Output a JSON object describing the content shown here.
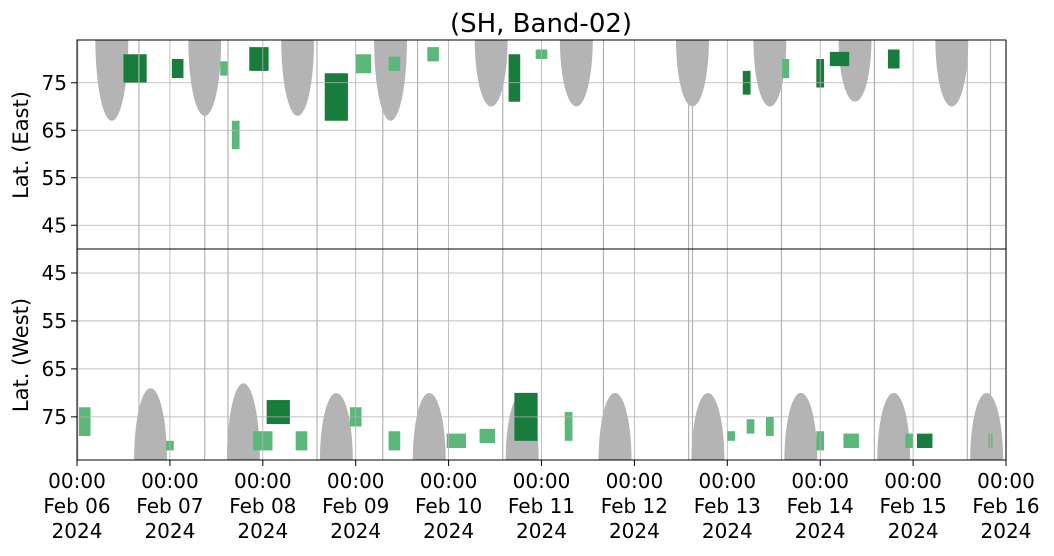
{
  "chart_data": {
    "type": "heatmap",
    "title": "(SH, Band-02)",
    "panels": [
      {
        "name": "east",
        "ylabel": "Lat. (East)",
        "yticks": [
          "45",
          "55",
          "65",
          "75"
        ],
        "ylim": [
          40,
          84
        ],
        "orientation": "up"
      },
      {
        "name": "west",
        "ylabel": "Lat. (West)",
        "yticks": [
          "75",
          "65",
          "55",
          "45"
        ],
        "ylim": [
          40,
          84
        ],
        "orientation": "down"
      }
    ],
    "xlim": [
      "2024-02-06 00:00",
      "2024-02-16 00:00"
    ],
    "x_ticks": [
      {
        "time": "00:00",
        "date": "Feb 06",
        "year": "2024"
      },
      {
        "time": "00:00",
        "date": "Feb 07",
        "year": "2024"
      },
      {
        "time": "00:00",
        "date": "Feb 08",
        "year": "2024"
      },
      {
        "time": "00:00",
        "date": "Feb 09",
        "year": "2024"
      },
      {
        "time": "00:00",
        "date": "Feb 10",
        "year": "2024"
      },
      {
        "time": "00:00",
        "date": "Feb 11",
        "year": "2024"
      },
      {
        "time": "00:00",
        "date": "Feb 12",
        "year": "2024"
      },
      {
        "time": "00:00",
        "date": "Feb 13",
        "year": "2024"
      },
      {
        "time": "00:00",
        "date": "Feb 14",
        "year": "2024"
      },
      {
        "time": "00:00",
        "date": "Feb 15",
        "year": "2024"
      },
      {
        "time": "00:00",
        "date": "Feb 16",
        "year": "2024"
      }
    ],
    "grid": true,
    "colors": {
      "no_data": "#b4b4b4",
      "echo_light": "#5cb87a",
      "echo_dark": "#187d3c"
    },
    "no_data_regions": [
      {
        "panel": "east",
        "center": "2024-02-06 09:00",
        "width_hours": 8.5,
        "min_lat": 67
      },
      {
        "panel": "east",
        "center": "2024-02-07 09:00",
        "width_hours": 8.5,
        "min_lat": 68
      },
      {
        "panel": "east",
        "center": "2024-02-08 09:00",
        "width_hours": 8.5,
        "min_lat": 68
      },
      {
        "panel": "east",
        "center": "2024-02-09 09:00",
        "width_hours": 8.5,
        "min_lat": 67
      },
      {
        "panel": "east",
        "center": "2024-02-10 11:00",
        "width_hours": 8.5,
        "min_lat": 70
      },
      {
        "panel": "east",
        "center": "2024-02-11 09:00",
        "width_hours": 8.5,
        "min_lat": 70
      },
      {
        "panel": "east",
        "center": "2024-02-12 15:00",
        "width_hours": 8.5,
        "min_lat": 70
      },
      {
        "panel": "east",
        "center": "2024-02-13 11:00",
        "width_hours": 8.5,
        "min_lat": 70
      },
      {
        "panel": "east",
        "center": "2024-02-14 09:00",
        "width_hours": 8.5,
        "min_lat": 71
      },
      {
        "panel": "east",
        "center": "2024-02-15 10:00",
        "width_hours": 8.5,
        "min_lat": 70
      },
      {
        "panel": "west",
        "center": "2024-02-06 19:00",
        "width_hours": 8.5,
        "min_lat": 69
      },
      {
        "panel": "west",
        "center": "2024-02-07 19:00",
        "width_hours": 8.5,
        "min_lat": 68
      },
      {
        "panel": "west",
        "center": "2024-02-08 19:00",
        "width_hours": 8.5,
        "min_lat": 70
      },
      {
        "panel": "west",
        "center": "2024-02-09 19:00",
        "width_hours": 8.5,
        "min_lat": 70
      },
      {
        "panel": "west",
        "center": "2024-02-10 19:00",
        "width_hours": 8.5,
        "min_lat": 70
      },
      {
        "panel": "west",
        "center": "2024-02-11 19:00",
        "width_hours": 8.5,
        "min_lat": 70
      },
      {
        "panel": "west",
        "center": "2024-02-12 19:00",
        "width_hours": 8.5,
        "min_lat": 70
      },
      {
        "panel": "west",
        "center": "2024-02-13 19:00",
        "width_hours": 8.5,
        "min_lat": 70
      },
      {
        "panel": "west",
        "center": "2024-02-14 19:00",
        "width_hours": 8.5,
        "min_lat": 70
      },
      {
        "panel": "west",
        "center": "2024-02-15 19:00",
        "width_hours": 8.5,
        "min_lat": 70
      }
    ],
    "no_data_lines": [
      "2024-02-06 00:10",
      "2024-02-06 16:00",
      "2024-02-07 09:00",
      "2024-02-07 15:00",
      "2024-02-08 14:00",
      "2024-02-09 07:00",
      "2024-02-09 16:00",
      "2024-02-10 14:00",
      "2024-02-11 16:00",
      "2024-02-12 14:00",
      "2024-02-12 15:00",
      "2024-02-13 14:00",
      "2024-02-14 14:00",
      "2024-02-15 14:00",
      "2024-02-15 20:00",
      "2024-02-16 00:00"
    ],
    "echo_clusters": [
      {
        "panel": "west",
        "time": "2024-02-06 02:00",
        "lat": 76,
        "duration_hours": 3,
        "lat_span": 6,
        "intensity": "light"
      },
      {
        "panel": "east",
        "time": "2024-02-06 15:00",
        "lat": 78,
        "duration_hours": 6,
        "lat_span": 6,
        "intensity": "dark"
      },
      {
        "panel": "east",
        "time": "2024-02-07 02:00",
        "lat": 78,
        "duration_hours": 3,
        "lat_span": 4,
        "intensity": "dark"
      },
      {
        "panel": "west",
        "time": "2024-02-07 00:00",
        "lat": 81,
        "duration_hours": 2,
        "lat_span": 2,
        "intensity": "light"
      },
      {
        "panel": "east",
        "time": "2024-02-07 14:00",
        "lat": 78,
        "duration_hours": 2,
        "lat_span": 3,
        "intensity": "light"
      },
      {
        "panel": "east",
        "time": "2024-02-07 17:00",
        "lat": 64,
        "duration_hours": 2,
        "lat_span": 6,
        "intensity": "light"
      },
      {
        "panel": "east",
        "time": "2024-02-07 23:00",
        "lat": 80,
        "duration_hours": 5,
        "lat_span": 5,
        "intensity": "dark"
      },
      {
        "panel": "west",
        "time": "2024-02-08 00:00",
        "lat": 80,
        "duration_hours": 5,
        "lat_span": 4,
        "intensity": "light"
      },
      {
        "panel": "west",
        "time": "2024-02-08 04:00",
        "lat": 74,
        "duration_hours": 6,
        "lat_span": 5,
        "intensity": "dark"
      },
      {
        "panel": "west",
        "time": "2024-02-08 10:00",
        "lat": 80,
        "duration_hours": 3,
        "lat_span": 4,
        "intensity": "light"
      },
      {
        "panel": "east",
        "time": "2024-02-08 19:00",
        "lat": 72,
        "duration_hours": 6,
        "lat_span": 10,
        "intensity": "dark"
      },
      {
        "panel": "west",
        "time": "2024-02-09 00:00",
        "lat": 75,
        "duration_hours": 3,
        "lat_span": 4,
        "intensity": "light"
      },
      {
        "panel": "east",
        "time": "2024-02-09 02:00",
        "lat": 79,
        "duration_hours": 4,
        "lat_span": 4,
        "intensity": "light"
      },
      {
        "panel": "east",
        "time": "2024-02-09 10:00",
        "lat": 79,
        "duration_hours": 3,
        "lat_span": 3,
        "intensity": "light"
      },
      {
        "panel": "west",
        "time": "2024-02-09 10:00",
        "lat": 80,
        "duration_hours": 3,
        "lat_span": 4,
        "intensity": "light"
      },
      {
        "panel": "east",
        "time": "2024-02-09 20:00",
        "lat": 81,
        "duration_hours": 3,
        "lat_span": 3,
        "intensity": "light"
      },
      {
        "panel": "west",
        "time": "2024-02-10 02:00",
        "lat": 80,
        "duration_hours": 5,
        "lat_span": 3,
        "intensity": "light"
      },
      {
        "panel": "west",
        "time": "2024-02-10 10:00",
        "lat": 79,
        "duration_hours": 4,
        "lat_span": 3,
        "intensity": "light"
      },
      {
        "panel": "east",
        "time": "2024-02-10 17:00",
        "lat": 76,
        "duration_hours": 3,
        "lat_span": 10,
        "intensity": "dark"
      },
      {
        "panel": "west",
        "time": "2024-02-10 20:00",
        "lat": 75,
        "duration_hours": 6,
        "lat_span": 10,
        "intensity": "dark"
      },
      {
        "panel": "east",
        "time": "2024-02-11 00:00",
        "lat": 81,
        "duration_hours": 3,
        "lat_span": 2,
        "intensity": "light"
      },
      {
        "panel": "west",
        "time": "2024-02-11 07:00",
        "lat": 77,
        "duration_hours": 2,
        "lat_span": 6,
        "intensity": "light"
      },
      {
        "panel": "east",
        "time": "2024-02-13 05:00",
        "lat": 75,
        "duration_hours": 2,
        "lat_span": 5,
        "intensity": "dark"
      },
      {
        "panel": "west",
        "time": "2024-02-13 01:00",
        "lat": 79,
        "duration_hours": 2,
        "lat_span": 2,
        "intensity": "light"
      },
      {
        "panel": "west",
        "time": "2024-02-13 06:00",
        "lat": 77,
        "duration_hours": 2,
        "lat_span": 3,
        "intensity": "light"
      },
      {
        "panel": "west",
        "time": "2024-02-13 11:00",
        "lat": 77,
        "duration_hours": 2,
        "lat_span": 4,
        "intensity": "light"
      },
      {
        "panel": "east",
        "time": "2024-02-13 15:00",
        "lat": 78,
        "duration_hours": 2,
        "lat_span": 4,
        "intensity": "light"
      },
      {
        "panel": "east",
        "time": "2024-02-14 00:00",
        "lat": 77,
        "duration_hours": 2,
        "lat_span": 6,
        "intensity": "dark"
      },
      {
        "panel": "west",
        "time": "2024-02-14 00:00",
        "lat": 80,
        "duration_hours": 2,
        "lat_span": 4,
        "intensity": "light"
      },
      {
        "panel": "east",
        "time": "2024-02-14 05:00",
        "lat": 80,
        "duration_hours": 5,
        "lat_span": 3,
        "intensity": "dark"
      },
      {
        "panel": "west",
        "time": "2024-02-14 08:00",
        "lat": 80,
        "duration_hours": 4,
        "lat_span": 3,
        "intensity": "light"
      },
      {
        "panel": "east",
        "time": "2024-02-14 19:00",
        "lat": 80,
        "duration_hours": 3,
        "lat_span": 4,
        "intensity": "dark"
      },
      {
        "panel": "west",
        "time": "2024-02-14 23:00",
        "lat": 80,
        "duration_hours": 2,
        "lat_span": 3,
        "intensity": "light"
      },
      {
        "panel": "west",
        "time": "2024-02-15 03:00",
        "lat": 80,
        "duration_hours": 4,
        "lat_span": 3,
        "intensity": "dark"
      },
      {
        "panel": "west",
        "time": "2024-02-15 20:00",
        "lat": 80,
        "duration_hours": 1,
        "lat_span": 3,
        "intensity": "light"
      }
    ]
  }
}
